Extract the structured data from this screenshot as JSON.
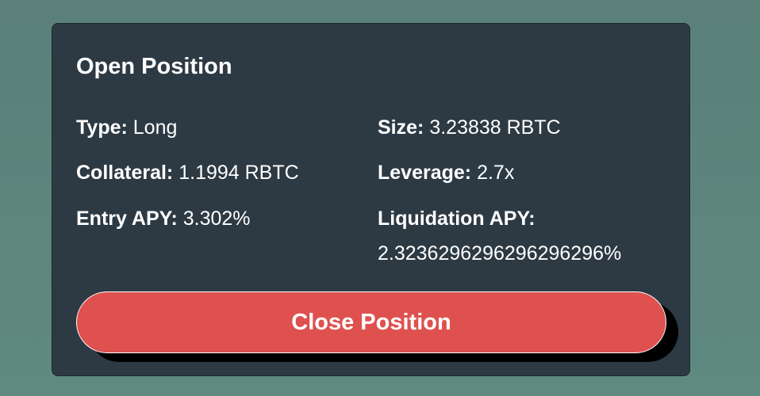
{
  "card": {
    "title": "Open Position",
    "fields": {
      "type": {
        "label": "Type:",
        "value": "Long"
      },
      "size": {
        "label": "Size:",
        "value": "3.23838 RBTC"
      },
      "collateral": {
        "label": "Collateral:",
        "value": "1.1994 RBTC"
      },
      "leverage": {
        "label": "Leverage:",
        "value": "2.7x"
      },
      "entry_apy": {
        "label": "Entry APY:",
        "value": "3.302%"
      },
      "liquidation_apy": {
        "label": "Liquidation APY:",
        "value": "2.3236296296296296296%"
      }
    },
    "close_button_label": "Close Position"
  },
  "colors": {
    "background": "#5c847b",
    "card": "#2d3a44",
    "button": "#de514f",
    "text": "#ffffff"
  }
}
